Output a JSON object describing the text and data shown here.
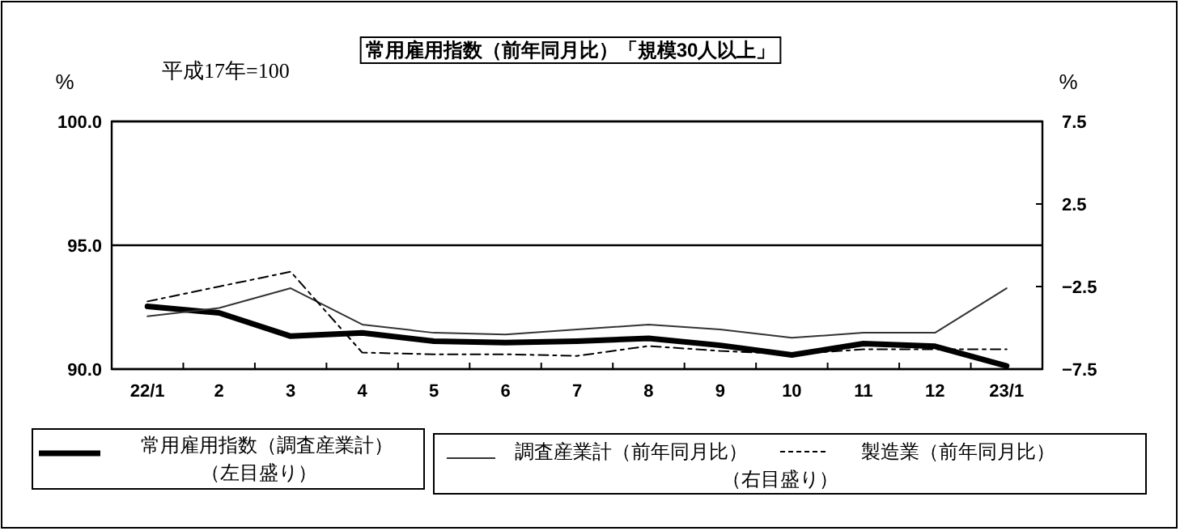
{
  "chart_data": {
    "type": "line",
    "title": "常用雇用指数（前年同月比）「規模30人以上」",
    "ylabel": "%",
    "y2label": "%",
    "annotations": [
      "平成17年=100",
      "（左目盛り）",
      "（右目盛り）"
    ],
    "categories": [
      "22/1",
      "2",
      "3",
      "4",
      "5",
      "6",
      "7",
      "8",
      "9",
      "10",
      "11",
      "12",
      "23/1"
    ],
    "series": [
      {
        "name": "常用雇用指数（調査産業計）",
        "color": "#000000",
        "axis": "y",
        "line_style": "solid",
        "values": [
          92.53,
          92.27,
          91.33,
          91.46,
          91.13,
          91.07,
          91.13,
          91.24,
          90.96,
          90.57,
          91.03,
          90.92,
          90.13
        ]
      },
      {
        "name": "調査産業計（前年同月比）",
        "color": "#333333",
        "axis": "y2",
        "line_style": "solid",
        "values": [
          -4.3,
          -3.8,
          -2.6,
          -4.8,
          -5.3,
          -5.4,
          -5.1,
          -4.8,
          -5.1,
          -5.6,
          -5.3,
          -5.3,
          -2.6
        ]
      },
      {
        "name": "製造業（前年同月比）",
        "color": "#000000",
        "axis": "y2",
        "line_style": "dashed",
        "values": [
          -3.4,
          -2.5,
          -1.6,
          -6.5,
          -6.6,
          -6.6,
          -6.7,
          -6.1,
          -6.4,
          -6.6,
          -6.3,
          -6.3,
          -6.3
        ]
      }
    ],
    "ylim": [
      90,
      100
    ],
    "yticks": [
      {
        "value": 90,
        "label": "90.0"
      },
      {
        "value": 95,
        "label": "95.0"
      },
      {
        "value": 100,
        "label": "100.0"
      }
    ],
    "y2lim": [
      -7.5,
      7.5
    ],
    "y2ticks": [
      {
        "value": -7.5,
        "label": "−7.5"
      },
      {
        "value": -2.5,
        "label": "−2.5"
      },
      2.5,
      7.5
    ],
    "grid": "y",
    "legend": "bottom"
  }
}
